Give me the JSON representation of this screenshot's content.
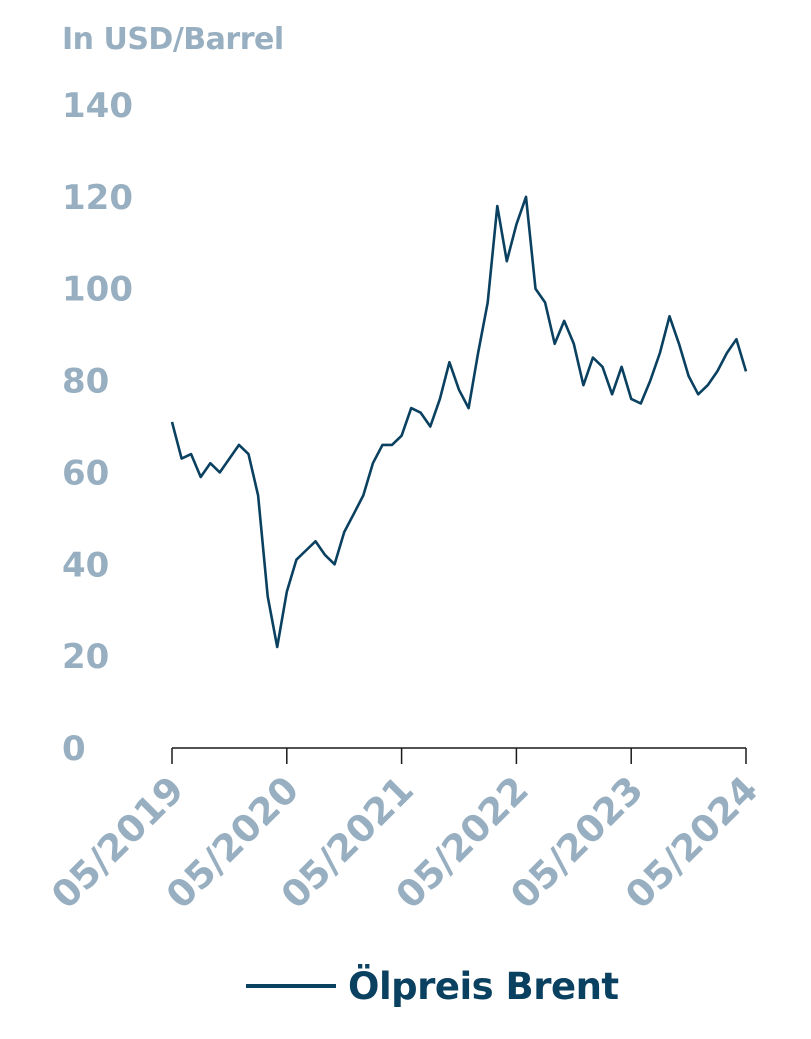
{
  "colors": {
    "line": "#0a4060",
    "axis_text": "#97afc0",
    "axis_line": "#1a1a1a",
    "legend_text": "#0a4060"
  },
  "chart_data": {
    "type": "line",
    "unit_label": "In USD/Barrel",
    "ylim": [
      0,
      140
    ],
    "y_ticks": [
      "0",
      "20",
      "40",
      "60",
      "80",
      "100",
      "120",
      "140"
    ],
    "xlim": [
      "2019-05",
      "2024-05"
    ],
    "x_ticks": [
      "05/2019",
      "05/2020",
      "05/2021",
      "05/2022",
      "05/2023",
      "05/2024"
    ],
    "grid": false,
    "legend_position": "bottom",
    "series": [
      {
        "name": "Ölpreis Brent",
        "x": [
          "2019-05",
          "2019-06",
          "2019-07",
          "2019-08",
          "2019-09",
          "2019-10",
          "2019-11",
          "2019-12",
          "2020-01",
          "2020-02",
          "2020-03",
          "2020-04",
          "2020-05",
          "2020-06",
          "2020-07",
          "2020-08",
          "2020-09",
          "2020-10",
          "2020-11",
          "2020-12",
          "2021-01",
          "2021-02",
          "2021-03",
          "2021-04",
          "2021-05",
          "2021-06",
          "2021-07",
          "2021-08",
          "2021-09",
          "2021-10",
          "2021-11",
          "2021-12",
          "2022-01",
          "2022-02",
          "2022-03",
          "2022-04",
          "2022-05",
          "2022-06",
          "2022-07",
          "2022-08",
          "2022-09",
          "2022-10",
          "2022-11",
          "2022-12",
          "2023-01",
          "2023-02",
          "2023-03",
          "2023-04",
          "2023-05",
          "2023-06",
          "2023-07",
          "2023-08",
          "2023-09",
          "2023-10",
          "2023-11",
          "2023-12",
          "2024-01",
          "2024-02",
          "2024-03",
          "2024-04",
          "2024-05"
        ],
        "values": [
          71,
          63,
          64,
          59,
          62,
          60,
          63,
          66,
          64,
          55,
          33,
          22,
          34,
          41,
          43,
          45,
          42,
          40,
          47,
          51,
          55,
          62,
          66,
          66,
          68,
          74,
          73,
          70,
          76,
          84,
          78,
          74,
          86,
          97,
          118,
          106,
          114,
          120,
          100,
          97,
          88,
          93,
          88,
          79,
          85,
          83,
          77,
          83,
          76,
          75,
          80,
          86,
          94,
          88,
          81,
          77,
          79,
          82,
          86,
          89,
          82
        ]
      }
    ]
  }
}
